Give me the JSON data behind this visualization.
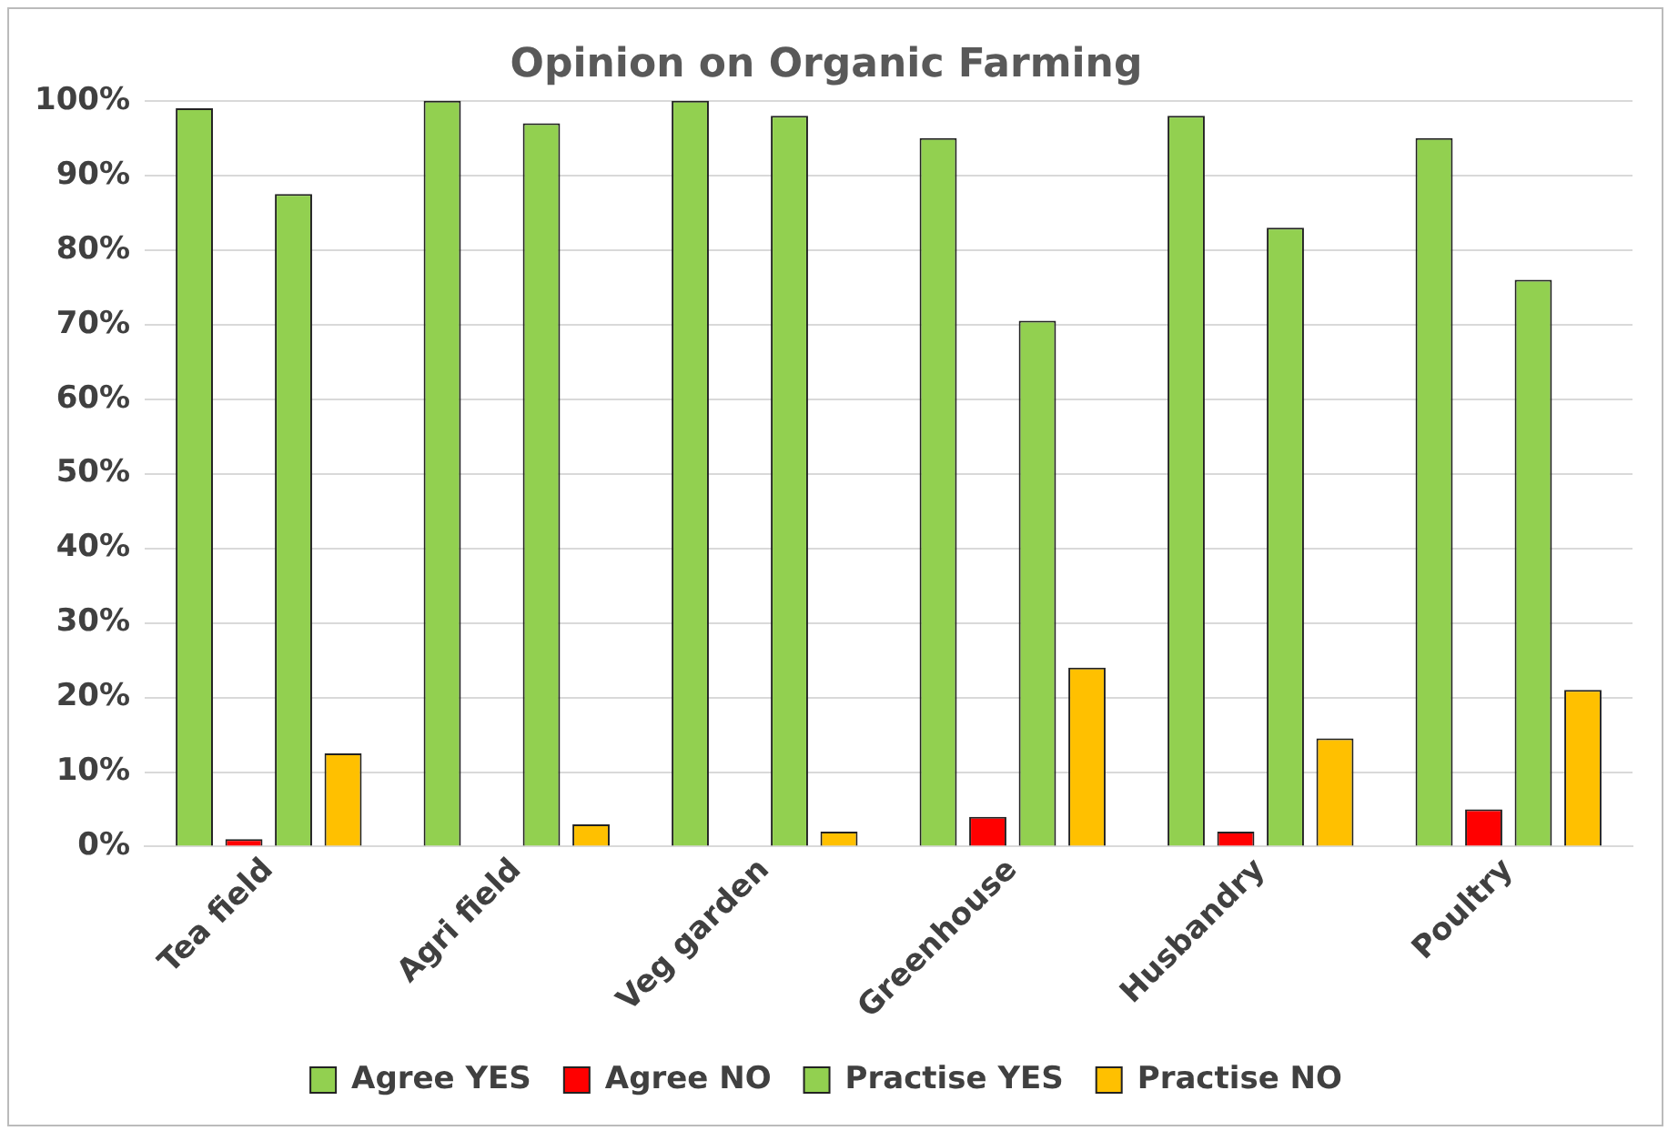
{
  "chart_data": {
    "type": "bar",
    "title": "Opinion on Organic Farming",
    "categories": [
      "Tea field",
      "Agri field",
      "Veg garden",
      "Greenhouse",
      "Husbandry",
      "Poultry"
    ],
    "series": [
      {
        "name": "Agree YES",
        "color": "#92d050",
        "values": [
          99,
          100,
          100,
          95,
          98,
          95
        ]
      },
      {
        "name": "Agree NO",
        "color": "#ff0000",
        "values": [
          1,
          0,
          0,
          4,
          2,
          5
        ]
      },
      {
        "name": "Practise YES",
        "color": "#92d050",
        "values": [
          87.5,
          97,
          98,
          70.5,
          83,
          76
        ]
      },
      {
        "name": "Practise NO",
        "color": "#ffc000",
        "values": [
          12.5,
          3,
          2,
          24,
          14.5,
          21
        ]
      }
    ],
    "ylim": [
      0,
      100
    ],
    "yticks": [
      {
        "value": 0,
        "label": "0%"
      },
      {
        "value": 10,
        "label": "10%"
      },
      {
        "value": 20,
        "label": "20%"
      },
      {
        "value": 30,
        "label": "30%"
      },
      {
        "value": 40,
        "label": "40%"
      },
      {
        "value": 50,
        "label": "50%"
      },
      {
        "value": 60,
        "label": "60%"
      },
      {
        "value": 70,
        "label": "70%"
      },
      {
        "value": 80,
        "label": "80%"
      },
      {
        "value": 90,
        "label": "90%"
      },
      {
        "value": 100,
        "label": "100%"
      }
    ],
    "grid": "y",
    "legend": "bottom"
  }
}
